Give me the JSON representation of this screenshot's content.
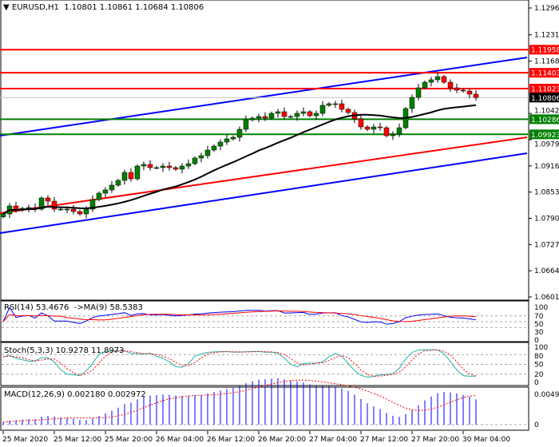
{
  "header": {
    "symbol": "EURUSD,H1",
    "open": "1.10801",
    "high": "1.10861",
    "low": "1.10684",
    "close": "1.10806"
  },
  "indicators": {
    "rsi": "RSI(14) 53.4676  ->MA(9) 58.5383",
    "stoch": "Stoch(5,3,3) 10.9278 11.8973",
    "macd": "MACD(12,26,9) 0.002180 0.002972"
  },
  "colors": {
    "bull": "#008000",
    "bear": "#ff0000",
    "ma": "#000000",
    "support": "#008000",
    "resistance": "#ff0000",
    "trend": "#0000ff",
    "channel": "#ff0000",
    "rsi": "#0000ff",
    "rsi_ma": "#ff0000",
    "stoch_main": "#20b2aa",
    "stoch_signal": "#ff0000",
    "macd_hist": "#0000ff",
    "macd_signal": "#ff0000"
  },
  "chart_data": {
    "type": "candlestick",
    "timeframe": "H1",
    "ylim": [
      1.06015,
      1.1296
    ],
    "price_ticks": [
      "1.12960",
      "1.12315",
      "1.11685",
      "1.10425",
      "1.09795",
      "1.09165",
      "1.08535",
      "1.07905",
      "1.07275",
      "1.06645",
      "1.06015"
    ],
    "time_labels": [
      "25 Mar 2020",
      "25 Mar 12:00",
      "25 Mar 20:00",
      "26 Mar 04:00",
      "26 Mar 12:00",
      "26 Mar 20:00",
      "27 Mar 04:00",
      "27 Mar 12:00",
      "27 Mar 20:00",
      "30 Mar 04:00"
    ],
    "closes": [
      1.0801,
      1.08202,
      1.08106,
      1.08144,
      1.08164,
      1.08125,
      1.08394,
      1.08317,
      1.08125,
      1.08125,
      1.08125,
      1.08068,
      1.0801,
      1.08125,
      1.08356,
      1.08509,
      1.08586,
      1.08701,
      1.08816,
      1.09008,
      1.08854,
      1.09161,
      1.092,
      1.09123,
      1.09123,
      1.09161,
      1.09123,
      1.09085,
      1.09161,
      1.09219,
      1.09353,
      1.09411,
      1.09545,
      1.09641,
      1.09737,
      1.09814,
      1.09852,
      1.10044,
      1.10274,
      1.10313,
      1.10351,
      1.10313,
      1.10428,
      1.10466,
      1.10351,
      1.10351,
      1.10428,
      1.10466,
      1.1037,
      1.10428,
      1.1062,
      1.10658,
      1.10658,
      1.10524,
      1.10447,
      1.10293,
      1.10101,
      1.10044,
      1.10101,
      1.10082,
      1.0989,
      1.09929,
      1.10082,
      1.10543,
      1.10811,
      1.11041,
      1.11176,
      1.11234,
      1.1131,
      1.11176,
      1.11041,
      1.10984,
      1.10965,
      1.10888,
      1.10806
    ],
    "ma_period": 20,
    "levels": [
      {
        "price": "1.11958",
        "kind": "resistance"
      },
      {
        "price": "1.11403",
        "kind": "resistance"
      },
      {
        "price": "1.11023",
        "kind": "resistance"
      },
      {
        "price": "1.10806",
        "kind": "current"
      },
      {
        "price": "1.10286",
        "kind": "support"
      },
      {
        "price": "1.09923",
        "kind": "support"
      }
    ],
    "trendlines": [
      {
        "kind": "trend",
        "from": [
          -0.5,
          1.09891
        ],
        "to": [
          82,
          1.11771
        ]
      },
      {
        "kind": "trend",
        "from": [
          -0.5,
          1.0755
        ],
        "to": [
          82,
          1.09469
        ]
      },
      {
        "kind": "channel",
        "from": [
          -0.5,
          1.08027
        ],
        "to": [
          82,
          1.09852
        ]
      }
    ],
    "rsi_levels": [
      "100",
      "70",
      "50",
      "30",
      "0"
    ],
    "stoch_levels": [
      "100",
      "80",
      "50",
      "20",
      "0"
    ],
    "macd_ticks": [
      "0.004951",
      "0"
    ]
  }
}
